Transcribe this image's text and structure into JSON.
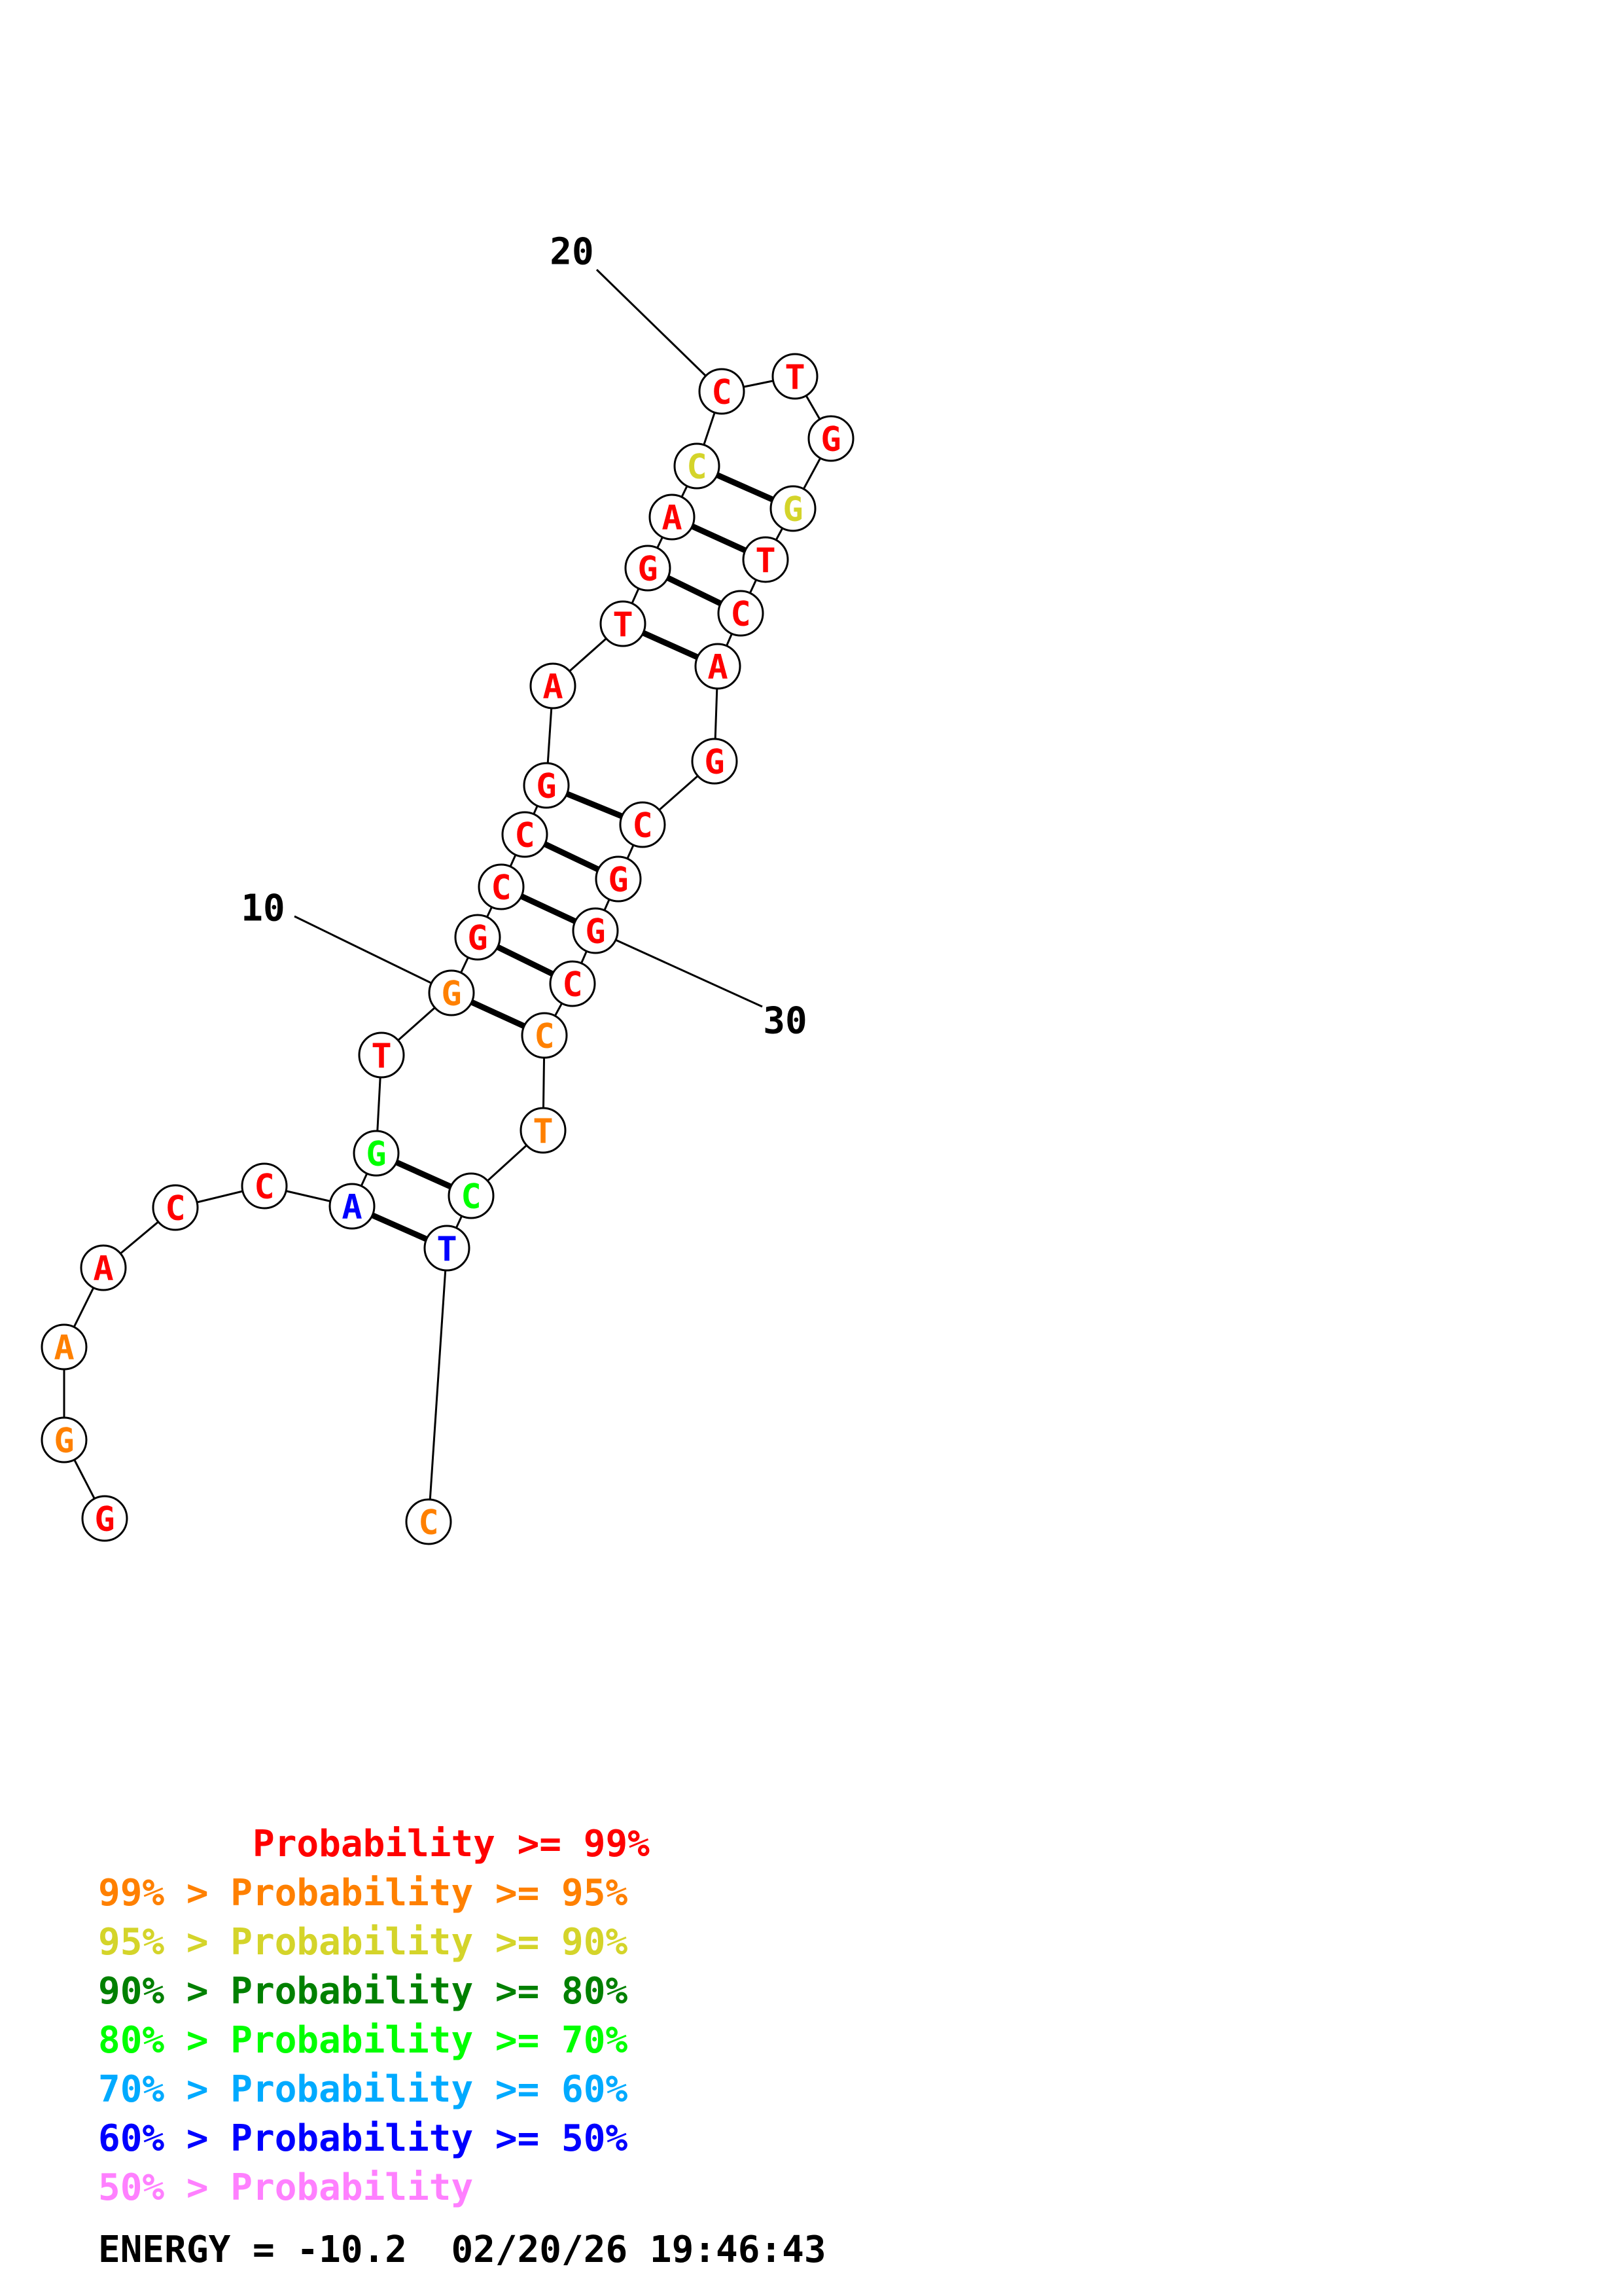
{
  "colors": {
    "p99": "#ff0000",
    "p95": "#ff8000",
    "p90": "#d4d42a",
    "p80": "#008000",
    "p70": "#00ff00",
    "p60": "#00aaff",
    "p50": "#0000ff",
    "below50": "#ff80ff",
    "black": "#000000"
  },
  "sequence": [
    {
      "n": 1,
      "base": "G",
      "color": "p99"
    },
    {
      "n": 2,
      "base": "G",
      "color": "p95"
    },
    {
      "n": 3,
      "base": "A",
      "color": "p95"
    },
    {
      "n": 4,
      "base": "A",
      "color": "p99"
    },
    {
      "n": 5,
      "base": "C",
      "color": "p99"
    },
    {
      "n": 6,
      "base": "C",
      "color": "p99"
    },
    {
      "n": 7,
      "base": "A",
      "color": "p50"
    },
    {
      "n": 8,
      "base": "G",
      "color": "p70"
    },
    {
      "n": 9,
      "base": "T",
      "color": "p99"
    },
    {
      "n": 10,
      "base": "G",
      "color": "p95"
    },
    {
      "n": 11,
      "base": "G",
      "color": "p99"
    },
    {
      "n": 12,
      "base": "C",
      "color": "p99"
    },
    {
      "n": 13,
      "base": "C",
      "color": "p99"
    },
    {
      "n": 14,
      "base": "G",
      "color": "p99"
    },
    {
      "n": 15,
      "base": "A",
      "color": "p99"
    },
    {
      "n": 16,
      "base": "T",
      "color": "p99"
    },
    {
      "n": 17,
      "base": "G",
      "color": "p99"
    },
    {
      "n": 18,
      "base": "A",
      "color": "p99"
    },
    {
      "n": 19,
      "base": "C",
      "color": "p90"
    },
    {
      "n": 20,
      "base": "C",
      "color": "p99"
    },
    {
      "n": 21,
      "base": "T",
      "color": "p99"
    },
    {
      "n": 22,
      "base": "G",
      "color": "p99"
    },
    {
      "n": 23,
      "base": "G",
      "color": "p90"
    },
    {
      "n": 24,
      "base": "T",
      "color": "p99"
    },
    {
      "n": 25,
      "base": "C",
      "color": "p99"
    },
    {
      "n": 26,
      "base": "A",
      "color": "p99"
    },
    {
      "n": 27,
      "base": "G",
      "color": "p99"
    },
    {
      "n": 28,
      "base": "C",
      "color": "p99"
    },
    {
      "n": 29,
      "base": "G",
      "color": "p99"
    },
    {
      "n": 30,
      "base": "G",
      "color": "p99"
    },
    {
      "n": 31,
      "base": "C",
      "color": "p99"
    },
    {
      "n": 32,
      "base": "C",
      "color": "p95"
    },
    {
      "n": 33,
      "base": "T",
      "color": "p95"
    },
    {
      "n": 34,
      "base": "C",
      "color": "p70"
    },
    {
      "n": 35,
      "base": "T",
      "color": "p50"
    },
    {
      "n": 36,
      "base": "C",
      "color": "p95"
    }
  ],
  "pairs": [
    [
      7,
      35
    ],
    [
      8,
      34
    ],
    [
      10,
      32
    ],
    [
      11,
      31
    ],
    [
      12,
      30
    ],
    [
      13,
      29
    ],
    [
      14,
      28
    ],
    [
      16,
      26
    ],
    [
      17,
      25
    ],
    [
      18,
      24
    ],
    [
      19,
      23
    ]
  ],
  "position_labels": [
    {
      "n": 10,
      "text": "10"
    },
    {
      "n": 20,
      "text": "20"
    },
    {
      "n": 30,
      "text": "30"
    }
  ],
  "legend": [
    {
      "text": "       Probability >= 99%",
      "color": "p99"
    },
    {
      "text": "99% > Probability >= 95%",
      "color": "p95"
    },
    {
      "text": "95% > Probability >= 90%",
      "color": "p90"
    },
    {
      "text": "90% > Probability >= 80%",
      "color": "p80"
    },
    {
      "text": "80% > Probability >= 70%",
      "color": "p70"
    },
    {
      "text": "70% > Probability >= 60%",
      "color": "p60"
    },
    {
      "text": "60% > Probability >= 50%",
      "color": "p50"
    },
    {
      "text": "50% > Probability",
      "color": "below50"
    }
  ],
  "footer": {
    "text": "ENERGY = -10.2  02/20/26 19:46:43"
  }
}
